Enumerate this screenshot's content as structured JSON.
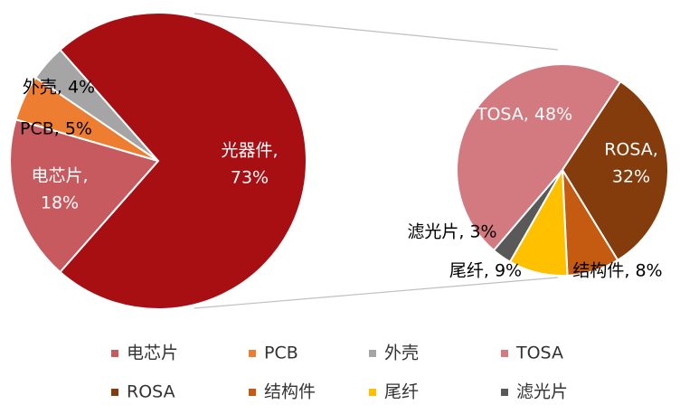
{
  "chart_data": {
    "type": "pie-of-pie",
    "main": {
      "categories": [
        "电芯片",
        "PCB",
        "外壳",
        "光器件"
      ],
      "values": [
        18,
        5,
        4,
        73
      ],
      "colors": [
        "#c65a5e",
        "#ed7d31",
        "#a5a5a5",
        "#a80f13"
      ],
      "value_labels": [
        [
          "电芯片,",
          "18%"
        ],
        [
          "PCB, 5%"
        ],
        [
          "外壳, 4%"
        ],
        [
          "光器件,",
          "73%"
        ]
      ]
    },
    "sub": {
      "categories": [
        "TOSA",
        "ROSA",
        "结构件",
        "尾纤",
        "滤光片"
      ],
      "values": [
        48,
        32,
        8,
        9,
        3
      ],
      "colors": [
        "#d27a80",
        "#843c0c",
        "#c55a11",
        "#ffc000",
        "#595959"
      ],
      "value_labels": [
        [
          "TOSA, 48%"
        ],
        [
          "ROSA,",
          "32%"
        ],
        [
          "结构件, 8%"
        ],
        [
          "尾纤, 9%"
        ],
        [
          "滤光片, 3%"
        ]
      ]
    }
  }
}
